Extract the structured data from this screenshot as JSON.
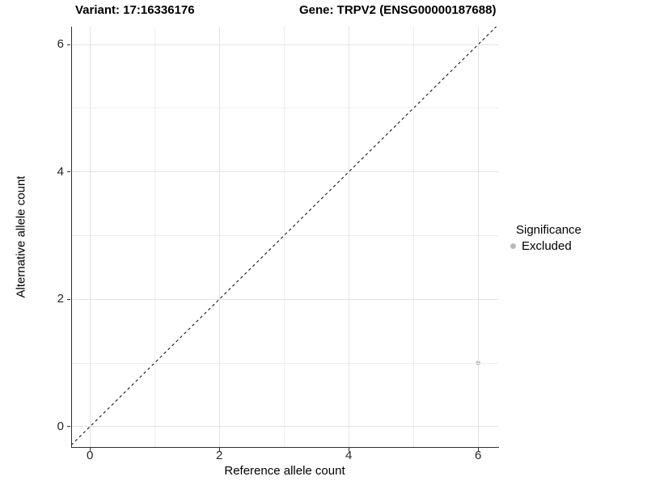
{
  "plot_header": {
    "variant_label": "Variant: 17:16336176",
    "gene_label": "Gene: TRPV2 (ENSG00000187688)"
  },
  "chart_data": {
    "type": "scatter",
    "title": "Variant: 17:16336176   Gene: TRPV2 (ENSG00000187688)",
    "xlabel": "Reference allele count",
    "ylabel": "Alternative allele count",
    "xlim": [
      -0.29,
      6.31
    ],
    "ylim": [
      -0.32,
      6.28
    ],
    "x_ticks": [
      0,
      2,
      4,
      6
    ],
    "y_ticks": [
      0,
      2,
      4,
      6
    ],
    "x_minor_breaks": [
      1,
      3,
      5
    ],
    "y_minor_breaks": [
      1,
      3,
      5
    ],
    "grid": true,
    "series": [
      {
        "name": "Excluded",
        "color": "#b9b9b9",
        "points": [
          {
            "x": 6,
            "y": 1
          }
        ]
      }
    ],
    "reference_line": {
      "type": "identity",
      "slope": 1,
      "intercept": 0,
      "style": "dashed",
      "color": "#000000"
    },
    "legend": {
      "title": "Significance",
      "position": "right",
      "items": [
        {
          "label": "Excluded",
          "color": "#b9b9b9"
        }
      ]
    }
  },
  "colors": {
    "background": "#ffffff",
    "axis_line": "#2f2f2f",
    "grid_major": "#e3e3e3",
    "grid_minor": "#ededed",
    "tick_label": "#262626",
    "point": "#b9b9b9"
  }
}
